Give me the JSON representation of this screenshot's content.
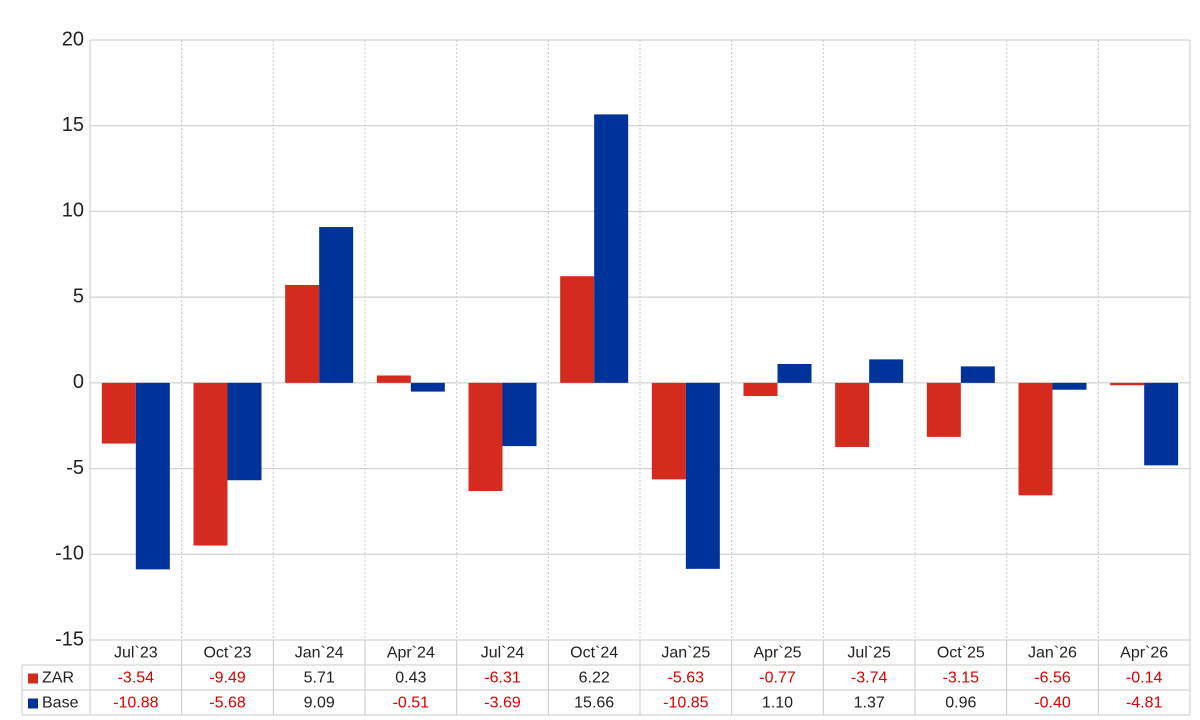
{
  "chart_data": {
    "type": "bar",
    "categories": [
      "Jul`23",
      "Oct`23",
      "Jan`24",
      "Apr`24",
      "Jul`24",
      "Oct`24",
      "Jan`25",
      "Apr`25",
      "Jul`25",
      "Oct`25",
      "Jan`26",
      "Apr`26"
    ],
    "series": [
      {
        "name": "ZAR",
        "color": "#d52b1e",
        "values": [
          -3.54,
          -9.49,
          5.71,
          0.43,
          -6.31,
          6.22,
          -5.63,
          -0.77,
          -3.74,
          -3.15,
          -6.56,
          -0.14
        ],
        "value_labels": [
          "-3.54",
          "-9.49",
          "5.71",
          "0.43",
          "-6.31",
          "6.22",
          "-5.63",
          "-0.77",
          "-3.74",
          "-3.15",
          "-6.56",
          "-0.14"
        ]
      },
      {
        "name": "Base",
        "color": "#003399",
        "values": [
          -10.88,
          -5.68,
          9.09,
          -0.51,
          -3.69,
          15.66,
          -10.85,
          1.1,
          1.37,
          0.96,
          -0.4,
          -4.81
        ],
        "value_labels": [
          "-10.88",
          "-5.68",
          "9.09",
          "-0.51",
          "-3.69",
          "15.66",
          "-10.85",
          "1.10",
          "1.37",
          "0.96",
          "-0.40",
          "-4.81"
        ]
      }
    ],
    "ylim": [
      -15,
      20
    ],
    "yticks": [
      -15,
      -10,
      -5,
      0,
      5,
      10,
      15,
      20
    ],
    "grid": true
  }
}
